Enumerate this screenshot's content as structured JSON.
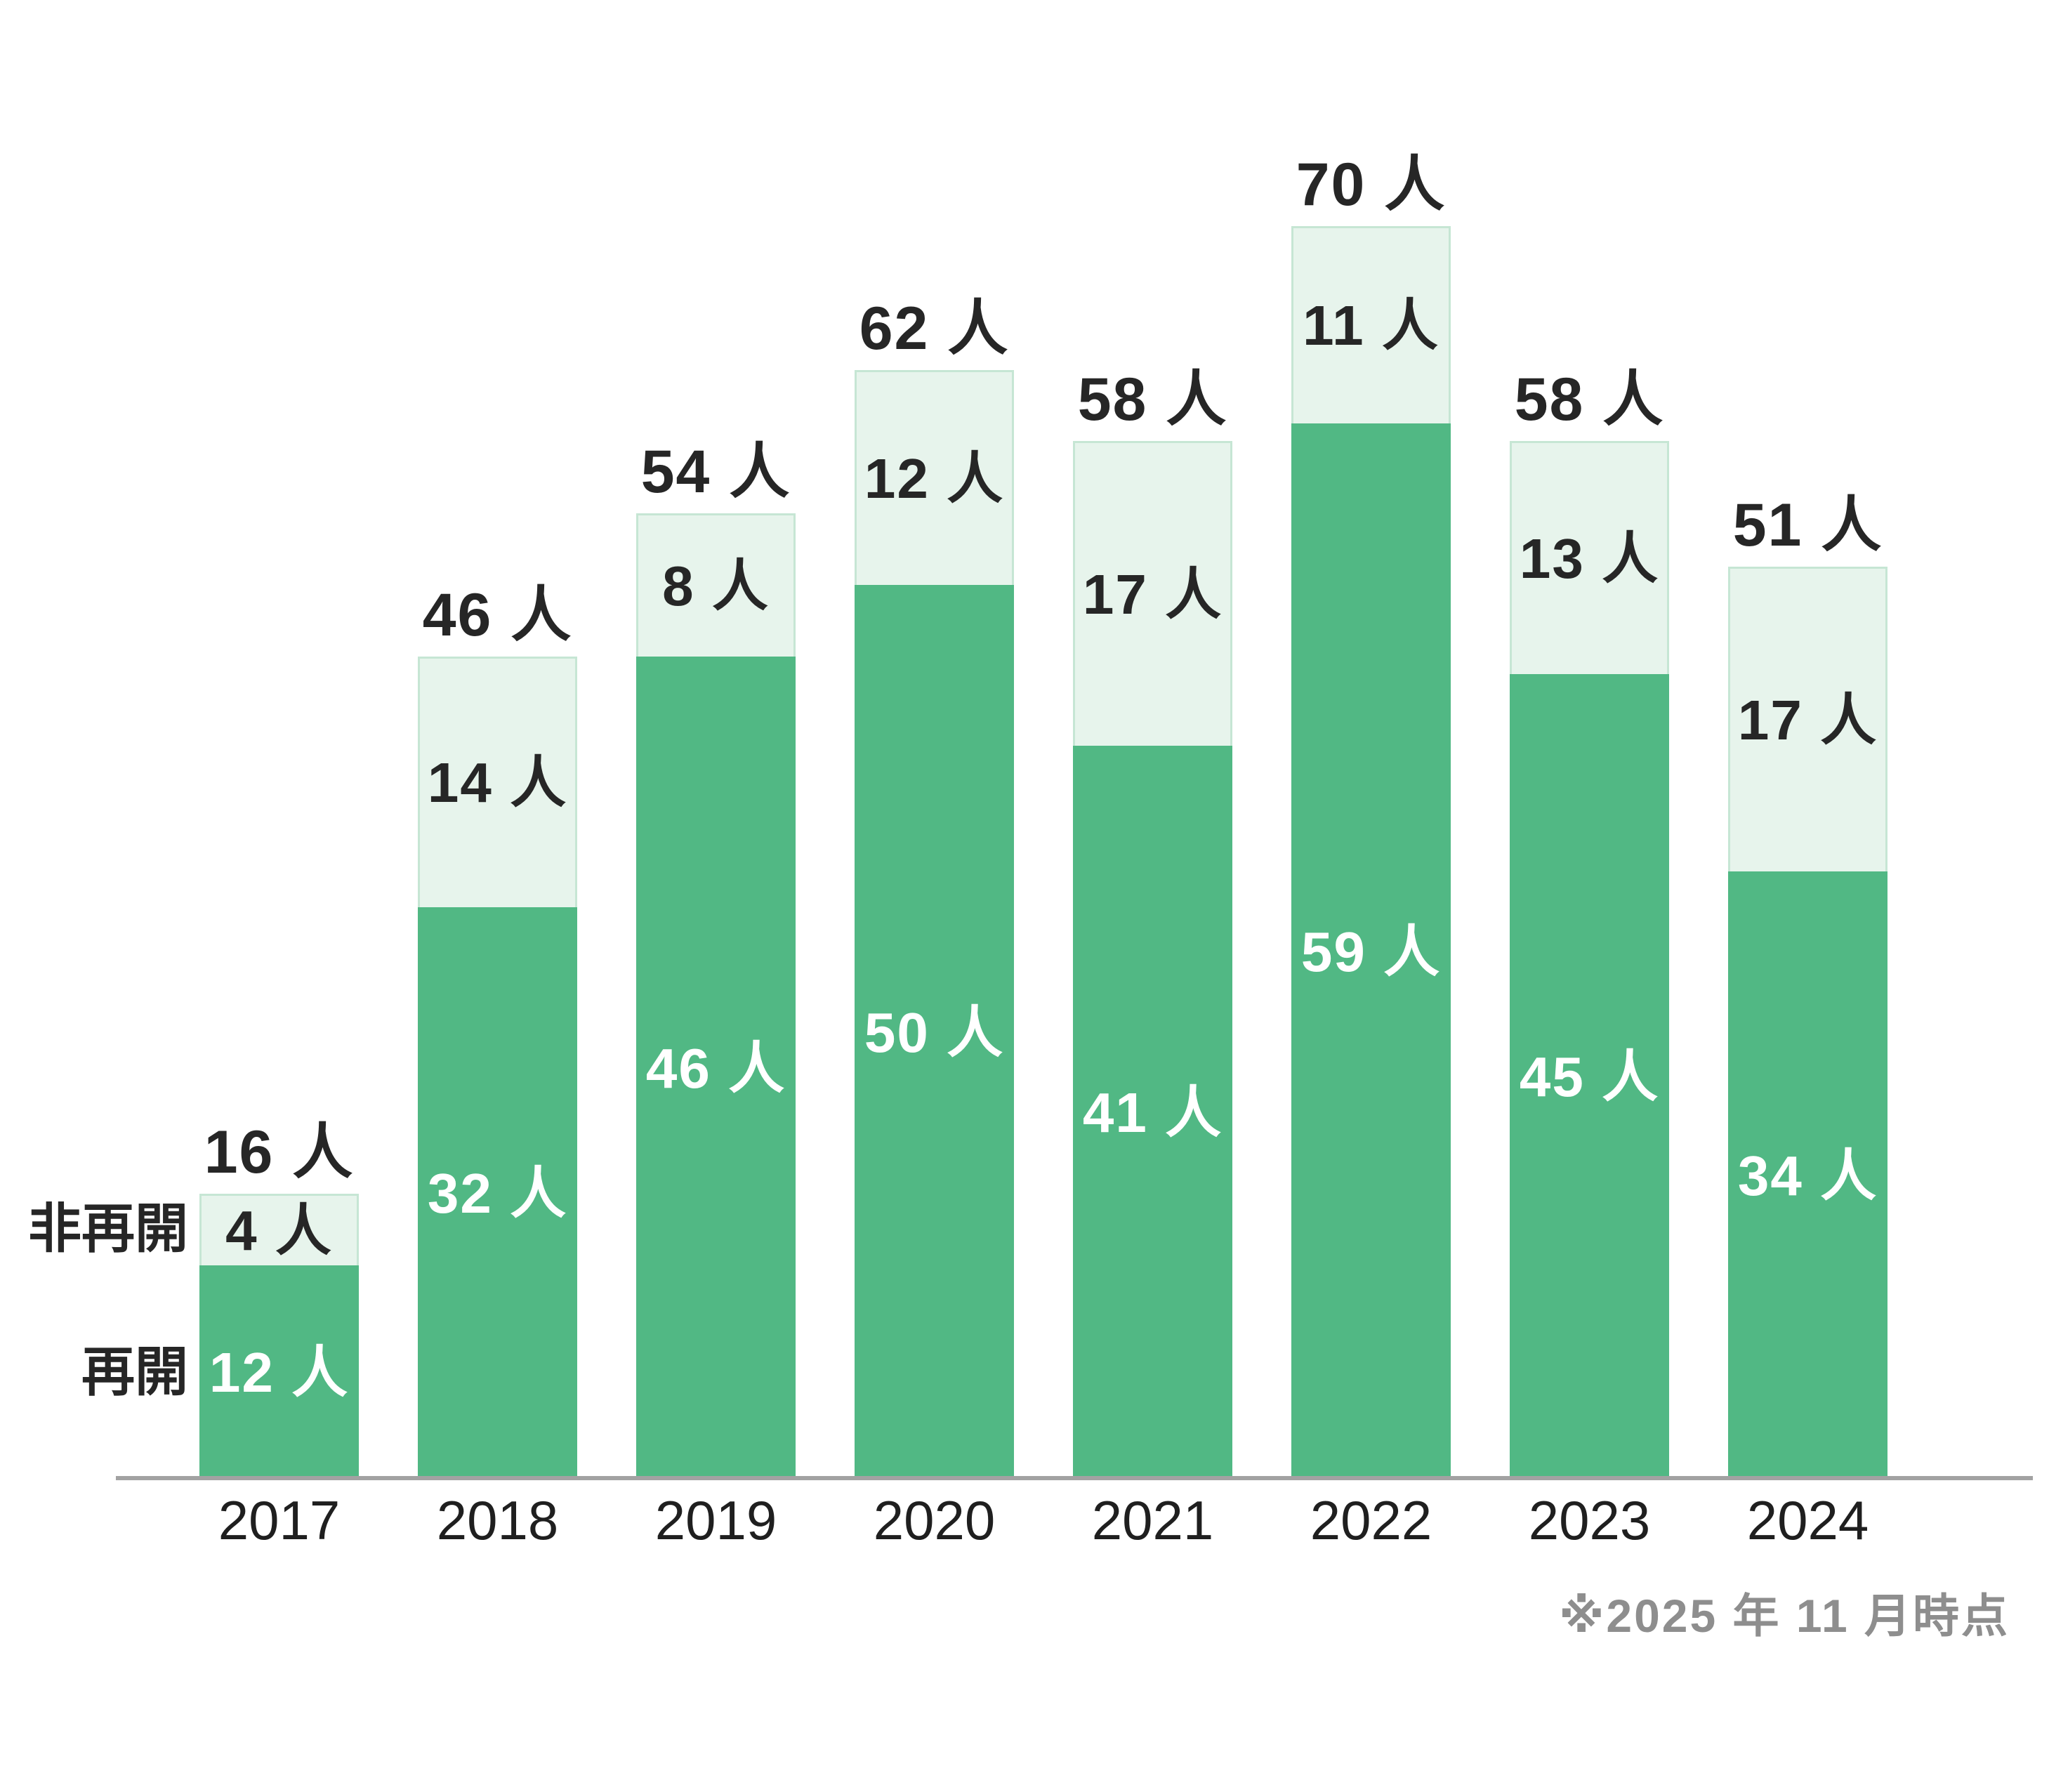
{
  "chart_data": {
    "type": "bar",
    "stacked": true,
    "unit": "人",
    "categories": [
      "2017",
      "2018",
      "2019",
      "2020",
      "2021",
      "2022",
      "2023",
      "2024"
    ],
    "series": [
      {
        "name": "再開",
        "values": [
          12,
          32,
          46,
          50,
          41,
          59,
          45,
          34
        ]
      },
      {
        "name": "非再開",
        "values": [
          4,
          14,
          8,
          12,
          17,
          11,
          13,
          17
        ]
      }
    ],
    "totals": [
      16,
      46,
      54,
      62,
      58,
      70,
      58,
      51
    ],
    "total_labels": [
      "16 人",
      "46 人",
      "54 人",
      "62 人",
      "58 人",
      "70 人",
      "58 人",
      "51 人"
    ],
    "reopened_labels": [
      "12 人",
      "32 人",
      "46 人",
      "50 人",
      "41 人",
      "59 人",
      "45 人",
      "34 人"
    ],
    "not_reopened_labels": [
      "4 人",
      "14 人",
      "8 人",
      "12 人",
      "17 人",
      "11 人",
      "13 人",
      "17 人"
    ],
    "annotation": "※2025 年 11 月時点",
    "ylim": [
      0,
      75
    ],
    "grid": false,
    "legend_position": "left of 2017 bar",
    "colors": {
      "reopened_fill": "#51B884",
      "not_reopened_fill": "#E7F4EC",
      "not_reopened_border": "#C6E6D4",
      "label_on_dark": "#FFFFFF",
      "label_on_light": "#262626",
      "total_label": "#262626",
      "year_label": "#1F1F1F",
      "legend_label": "#262626",
      "axis_line": "#A2A2A2",
      "footnote": "#8E8E8E"
    }
  }
}
